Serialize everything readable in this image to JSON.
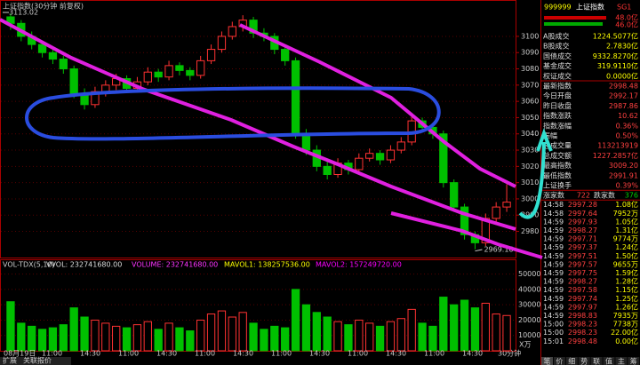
{
  "title": "上证指数(30分钟 前复权)",
  "price_chart": {
    "ylim": [
      2965,
      3118
    ],
    "yticks": [
      2980,
      2990,
      3000,
      3010,
      3020,
      3030,
      3040,
      3050,
      3060,
      3070,
      3080,
      3090,
      3100
    ],
    "high_label": "3113.02",
    "low_label": "2969.16",
    "candles": [
      [
        3112,
        3114,
        3104,
        3108
      ],
      [
        3108,
        3110,
        3097,
        3100
      ],
      [
        3100,
        3103,
        3092,
        3095
      ],
      [
        3095,
        3097,
        3087,
        3090
      ],
      [
        3090,
        3093,
        3083,
        3086
      ],
      [
        3086,
        3088,
        3077,
        3080
      ],
      [
        3080,
        3082,
        3062,
        3065
      ],
      [
        3065,
        3068,
        3055,
        3058
      ],
      [
        3058,
        3069,
        3056,
        3066
      ],
      [
        3066,
        3073,
        3063,
        3070
      ],
      [
        3070,
        3077,
        3067,
        3074
      ],
      [
        3074,
        3076,
        3065,
        3068
      ],
      [
        3068,
        3075,
        3066,
        3072
      ],
      [
        3072,
        3081,
        3070,
        3078
      ],
      [
        3078,
        3080,
        3072,
        3075
      ],
      [
        3075,
        3085,
        3073,
        3082
      ],
      [
        3082,
        3084,
        3076,
        3079
      ],
      [
        3079,
        3081,
        3073,
        3076
      ],
      [
        3076,
        3088,
        3074,
        3085
      ],
      [
        3085,
        3095,
        3083,
        3092
      ],
      [
        3092,
        3103,
        3090,
        3100
      ],
      [
        3100,
        3109,
        3098,
        3106
      ],
      [
        3106,
        3113,
        3103,
        3110
      ],
      [
        3110,
        3112,
        3099,
        3102
      ],
      [
        3102,
        3105,
        3097,
        3100
      ],
      [
        3100,
        3102,
        3089,
        3092
      ],
      [
        3092,
        3094,
        3082,
        3085
      ],
      [
        3085,
        3087,
        3037,
        3040
      ],
      [
        3040,
        3043,
        3027,
        3030
      ],
      [
        3030,
        3033,
        3017,
        3020
      ],
      [
        3020,
        3023,
        3012,
        3015
      ],
      [
        3015,
        3025,
        3013,
        3022
      ],
      [
        3022,
        3024,
        3015,
        3018
      ],
      [
        3018,
        3028,
        3016,
        3025
      ],
      [
        3025,
        3031,
        3023,
        3028
      ],
      [
        3028,
        3030,
        3021,
        3024
      ],
      [
        3024,
        3033,
        3022,
        3030
      ],
      [
        3030,
        3038,
        3028,
        3035
      ],
      [
        3035,
        3052,
        3033,
        3048
      ],
      [
        3048,
        3050,
        3041,
        3044
      ],
      [
        3044,
        3046,
        3037,
        3040
      ],
      [
        3040,
        3042,
        3007,
        3010
      ],
      [
        3010,
        3012,
        2992,
        2995
      ],
      [
        2995,
        2997,
        2975,
        2978
      ],
      [
        2978,
        2980,
        2969,
        2973
      ],
      [
        2973,
        2991,
        2971,
        2988
      ],
      [
        2988,
        2998,
        2986,
        2995
      ],
      [
        2995,
        3009,
        2992,
        2998
      ]
    ]
  },
  "volume_chart": {
    "header": [
      "VOL-TDX(5,10)",
      "VVOL: 232741680.00",
      "VOLUME: 232741680.00",
      "MAVOL1: 138257536.00",
      "MAVOL2: 157249720.00"
    ],
    "unit": "X万",
    "ylim": [
      0,
      55000
    ],
    "yticks": [
      10000,
      20000,
      30000,
      40000,
      50000
    ],
    "values": [
      32000,
      18000,
      16000,
      14000,
      15000,
      17000,
      28000,
      22000,
      20000,
      18000,
      16000,
      15000,
      17000,
      19000,
      14000,
      18000,
      15000,
      13000,
      20000,
      24000,
      26000,
      22000,
      25000,
      18000,
      14000,
      16000,
      15000,
      40000,
      30000,
      25000,
      22000,
      19000,
      17000,
      20000,
      18000,
      16000,
      19000,
      21000,
      27000,
      18000,
      16000,
      35000,
      30000,
      33000,
      28000,
      31000,
      24000,
      23000
    ]
  },
  "x_labels": [
    "08月19日",
    "11:00",
    "14:30",
    "11:00",
    "14:30",
    "11:00",
    "14:30",
    "11:00",
    "14:30",
    "11:00",
    "14:30",
    "11:00",
    "14:30"
  ],
  "period": "30分钟",
  "tabs": [
    "扩展",
    "关联报价"
  ],
  "quote": {
    "code": "999999",
    "name": "上证指数",
    "tag": "SG1",
    "bars": [
      "48.0亿",
      "46.0亿"
    ],
    "rows": [
      [
        "A股成交",
        "1224.5077亿"
      ],
      [
        "B股成交",
        "2.7830亿"
      ],
      [
        "国债成交",
        "9332.8270亿"
      ],
      [
        "基金成交",
        "319.9110亿"
      ],
      [
        "权证成交",
        "0.0000亿"
      ],
      [
        "最新指数",
        "2998.48"
      ],
      [
        "今日开盘",
        "2992.17"
      ],
      [
        "昨日收盘",
        "2987.86"
      ],
      [
        "指数涨跌",
        "10.62"
      ],
      [
        "指数涨幅",
        "0.36%"
      ],
      [
        "振幅",
        "0.50%"
      ],
      [
        "总成交量",
        "113213919"
      ],
      [
        "总成交额",
        "1227.2857亿"
      ],
      [
        "最高指数",
        "3009.20"
      ],
      [
        "最低指数",
        "2991.91"
      ],
      [
        "上证换手",
        "0.39%"
      ]
    ],
    "up_label": "涨家数",
    "up": "722",
    "down_label": "跌家数",
    "down": "376",
    "trades": [
      [
        "14:58",
        "2997.28",
        "1.08亿"
      ],
      [
        "14:58",
        "2997.64",
        "7952万"
      ],
      [
        "14:59",
        "2997.93",
        "1.05亿"
      ],
      [
        "14:59",
        "2998.27",
        "1.31亿"
      ],
      [
        "14:59",
        "2997.71",
        "9774万"
      ],
      [
        "14:59",
        "2997.37",
        "1.24亿"
      ],
      [
        "14:59",
        "2997.51",
        "1.50亿"
      ],
      [
        "14:59",
        "2997.57",
        "9655万"
      ],
      [
        "14:59",
        "2997.75",
        "1.59亿"
      ],
      [
        "14:59",
        "2998.27",
        "1.28亿"
      ],
      [
        "14:59",
        "2997.58",
        "1.15亿"
      ],
      [
        "14:59",
        "2997.74",
        "1.25亿"
      ],
      [
        "14:59",
        "2997.97",
        "1.26亿"
      ],
      [
        "14:59",
        "2998.83",
        "7935万"
      ],
      [
        "15:00",
        "2998.23",
        "7738万"
      ],
      [
        "15:00",
        "2998.23",
        "22.00亿"
      ],
      [
        "15:01",
        "2998.48",
        "0.00亿"
      ]
    ],
    "tabs": [
      "笔",
      "价",
      "细",
      "势",
      "联",
      "值",
      "主",
      "筹"
    ]
  }
}
